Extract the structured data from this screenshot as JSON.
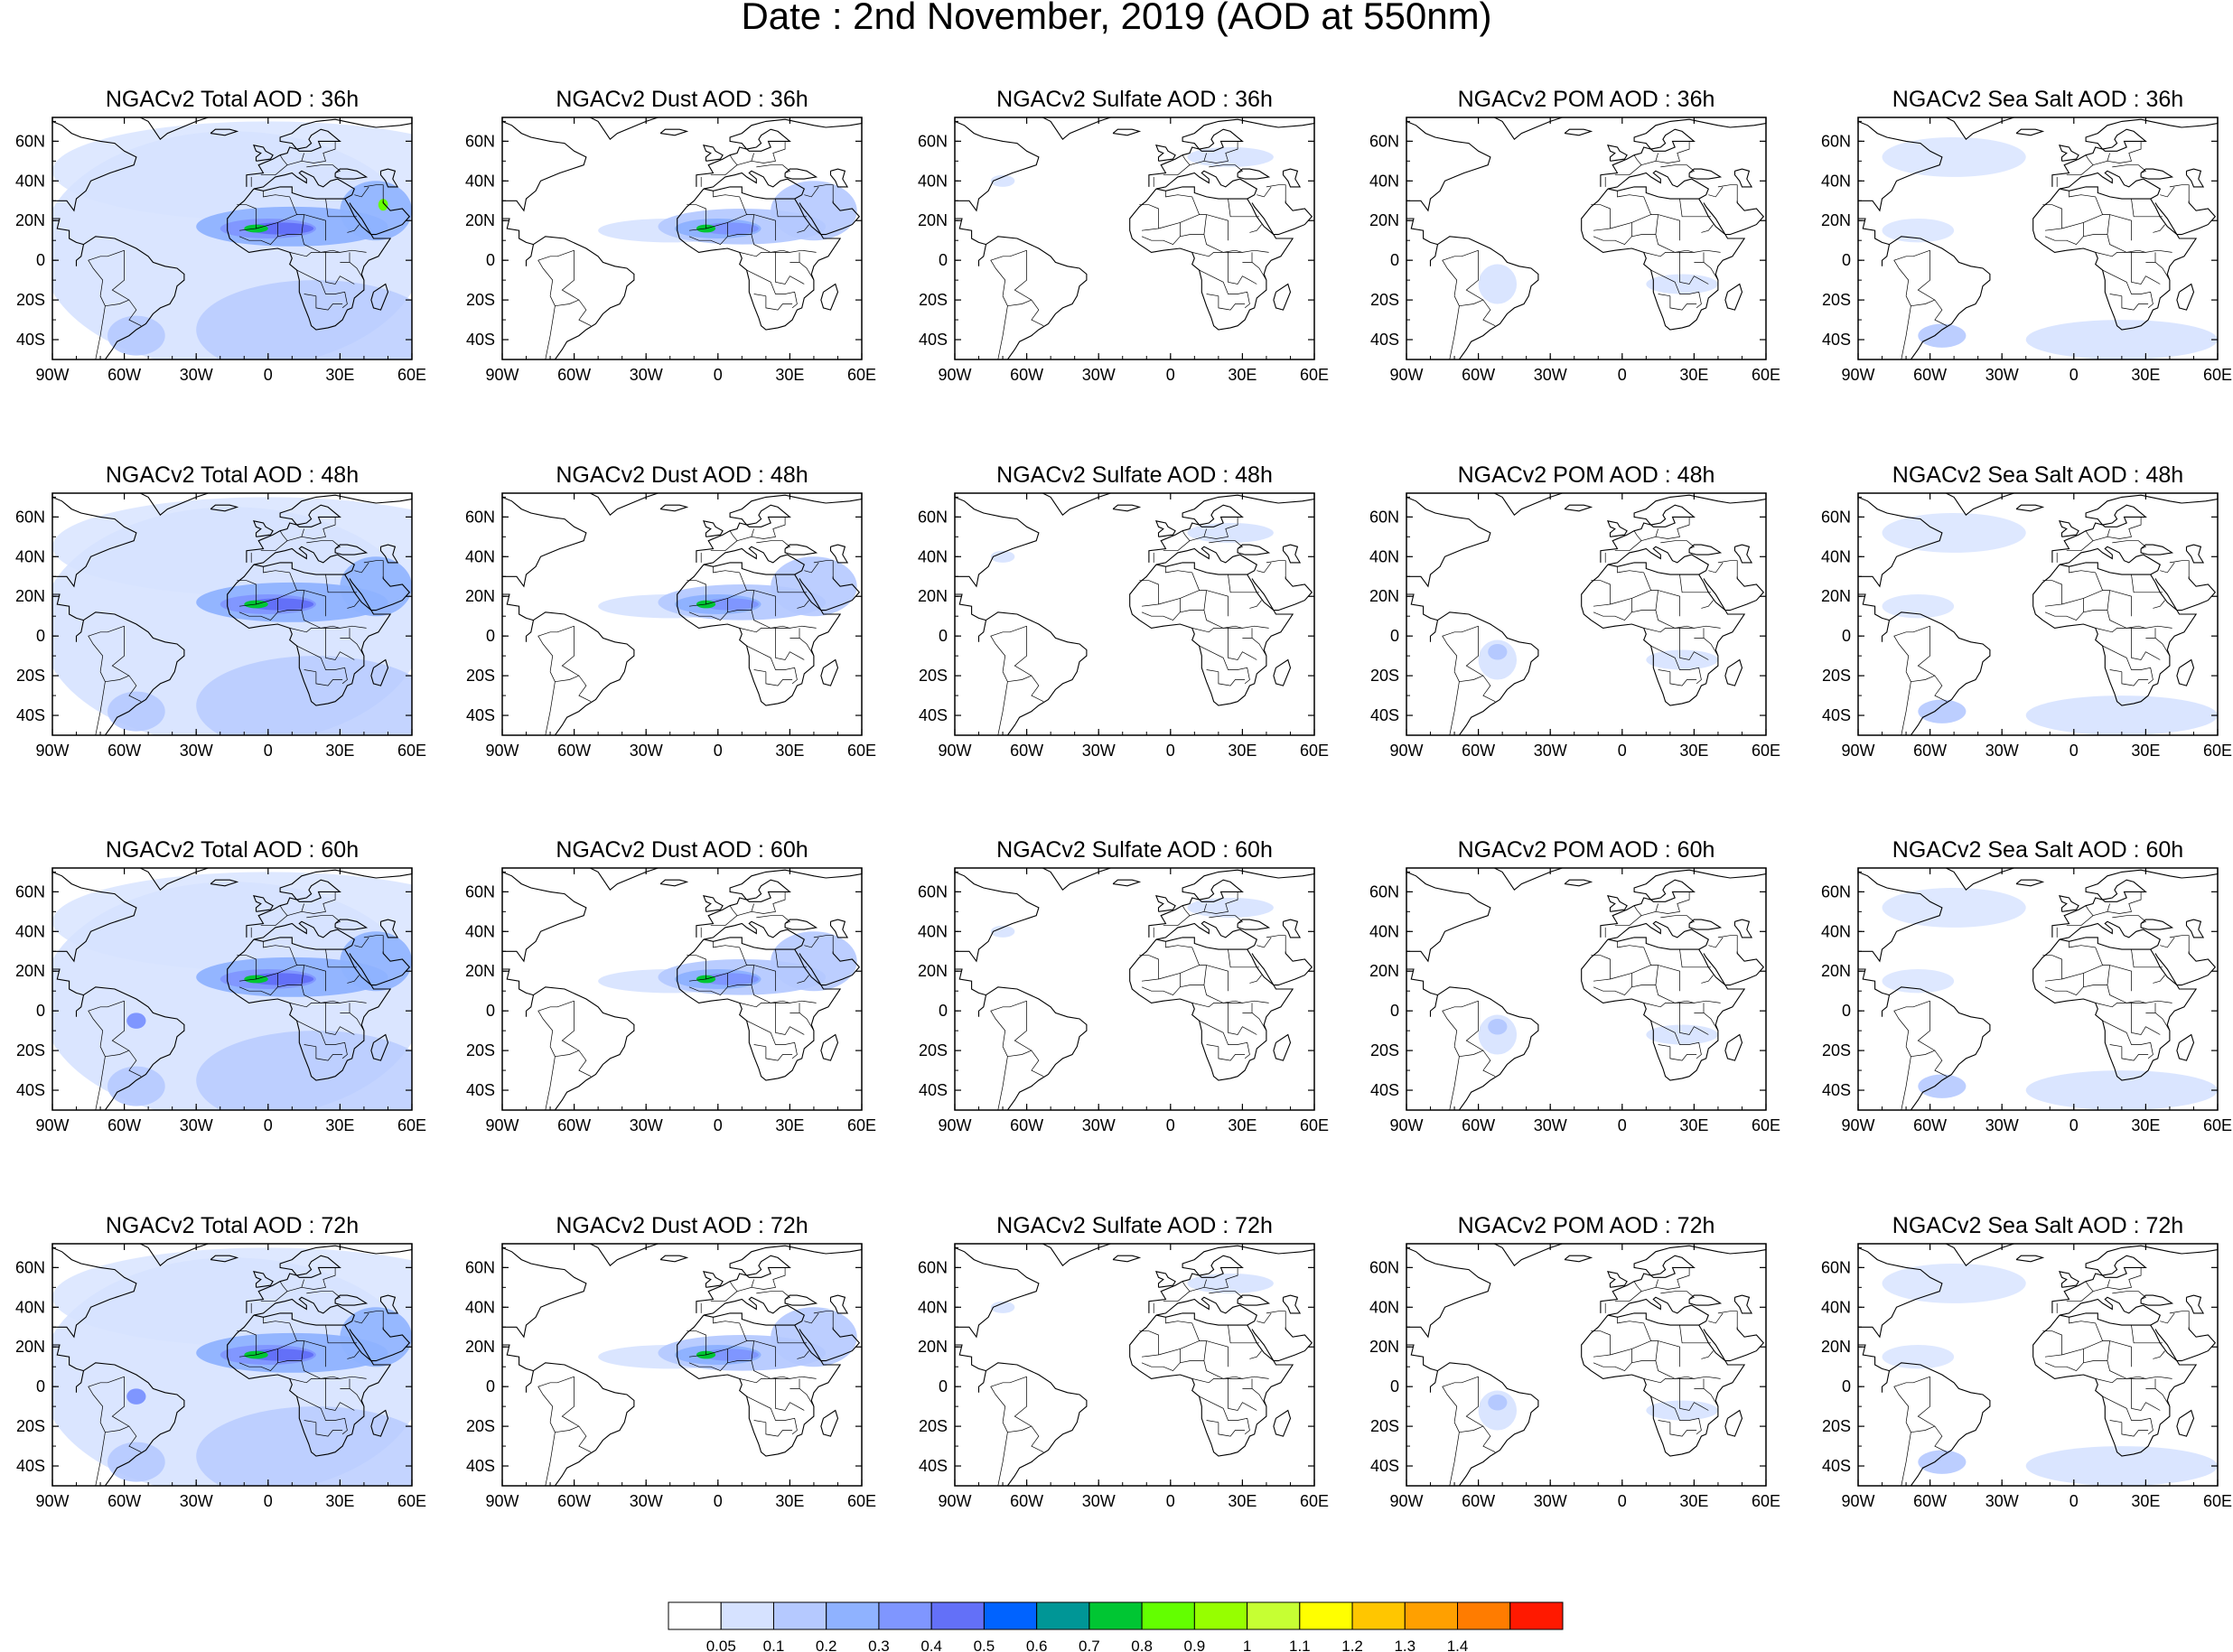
{
  "title": "Date : 2nd November, 2019 (AOD at 550nm)",
  "lat_tick_labels": [
    "60N",
    "40N",
    "20N",
    "0",
    "20S",
    "40S"
  ],
  "lon_tick_labels": [
    "90W",
    "60W",
    "30W",
    "0",
    "30E",
    "60E"
  ],
  "rows": [
    {
      "lead": "36h",
      "panels": [
        {
          "species": "total",
          "title": "NGACv2 Total AOD : 36h"
        },
        {
          "species": "dust",
          "title": "NGACv2 Dust AOD : 36h"
        },
        {
          "species": "sulfate",
          "title": "NGACv2 Sulfate AOD : 36h"
        },
        {
          "species": "pom",
          "title": "NGACv2 POM AOD : 36h"
        },
        {
          "species": "seasalt",
          "title": "NGACv2 Sea Salt AOD : 36h"
        }
      ]
    },
    {
      "lead": "48h",
      "panels": [
        {
          "species": "total",
          "title": "NGACv2 Total AOD : 48h"
        },
        {
          "species": "dust",
          "title": "NGACv2 Dust AOD : 48h"
        },
        {
          "species": "sulfate",
          "title": "NGACv2 Sulfate AOD : 48h"
        },
        {
          "species": "pom",
          "title": "NGACv2 POM AOD : 48h"
        },
        {
          "species": "seasalt",
          "title": "NGACv2 Sea Salt AOD : 48h"
        }
      ]
    },
    {
      "lead": "60h",
      "panels": [
        {
          "species": "total",
          "title": "NGACv2 Total AOD : 60h"
        },
        {
          "species": "dust",
          "title": "NGACv2 Dust AOD : 60h"
        },
        {
          "species": "sulfate",
          "title": "NGACv2 Sulfate AOD : 60h"
        },
        {
          "species": "pom",
          "title": "NGACv2 POM AOD : 60h"
        },
        {
          "species": "seasalt",
          "title": "NGACv2 Sea Salt AOD : 60h"
        }
      ]
    },
    {
      "lead": "72h",
      "panels": [
        {
          "species": "total",
          "title": "NGACv2 Total AOD : 72h"
        },
        {
          "species": "dust",
          "title": "NGACv2 Dust AOD : 72h"
        },
        {
          "species": "sulfate",
          "title": "NGACv2 Sulfate AOD : 72h"
        },
        {
          "species": "pom",
          "title": "NGACv2 POM AOD : 72h"
        },
        {
          "species": "seasalt",
          "title": "NGACv2 Sea Salt  AOD : 72h"
        }
      ]
    }
  ],
  "colorbar": {
    "labels": [
      "0.05",
      "0.1",
      "0.2",
      "0.3",
      "0.4",
      "0.5",
      "0.6",
      "0.7",
      "0.8",
      "0.9",
      "1",
      "1.1",
      "1.2",
      "1.3",
      "1.4"
    ],
    "colors": [
      "#ffffff",
      "#d6e2ff",
      "#b5c9ff",
      "#8fb2ff",
      "#7f96ff",
      "#6370f8",
      "#0063ff",
      "#009696",
      "#00c633",
      "#63ff00",
      "#96ff00",
      "#c6ff33",
      "#ffff00",
      "#ffc600",
      "#ffa000",
      "#ff7c00",
      "#ff1900"
    ]
  }
}
